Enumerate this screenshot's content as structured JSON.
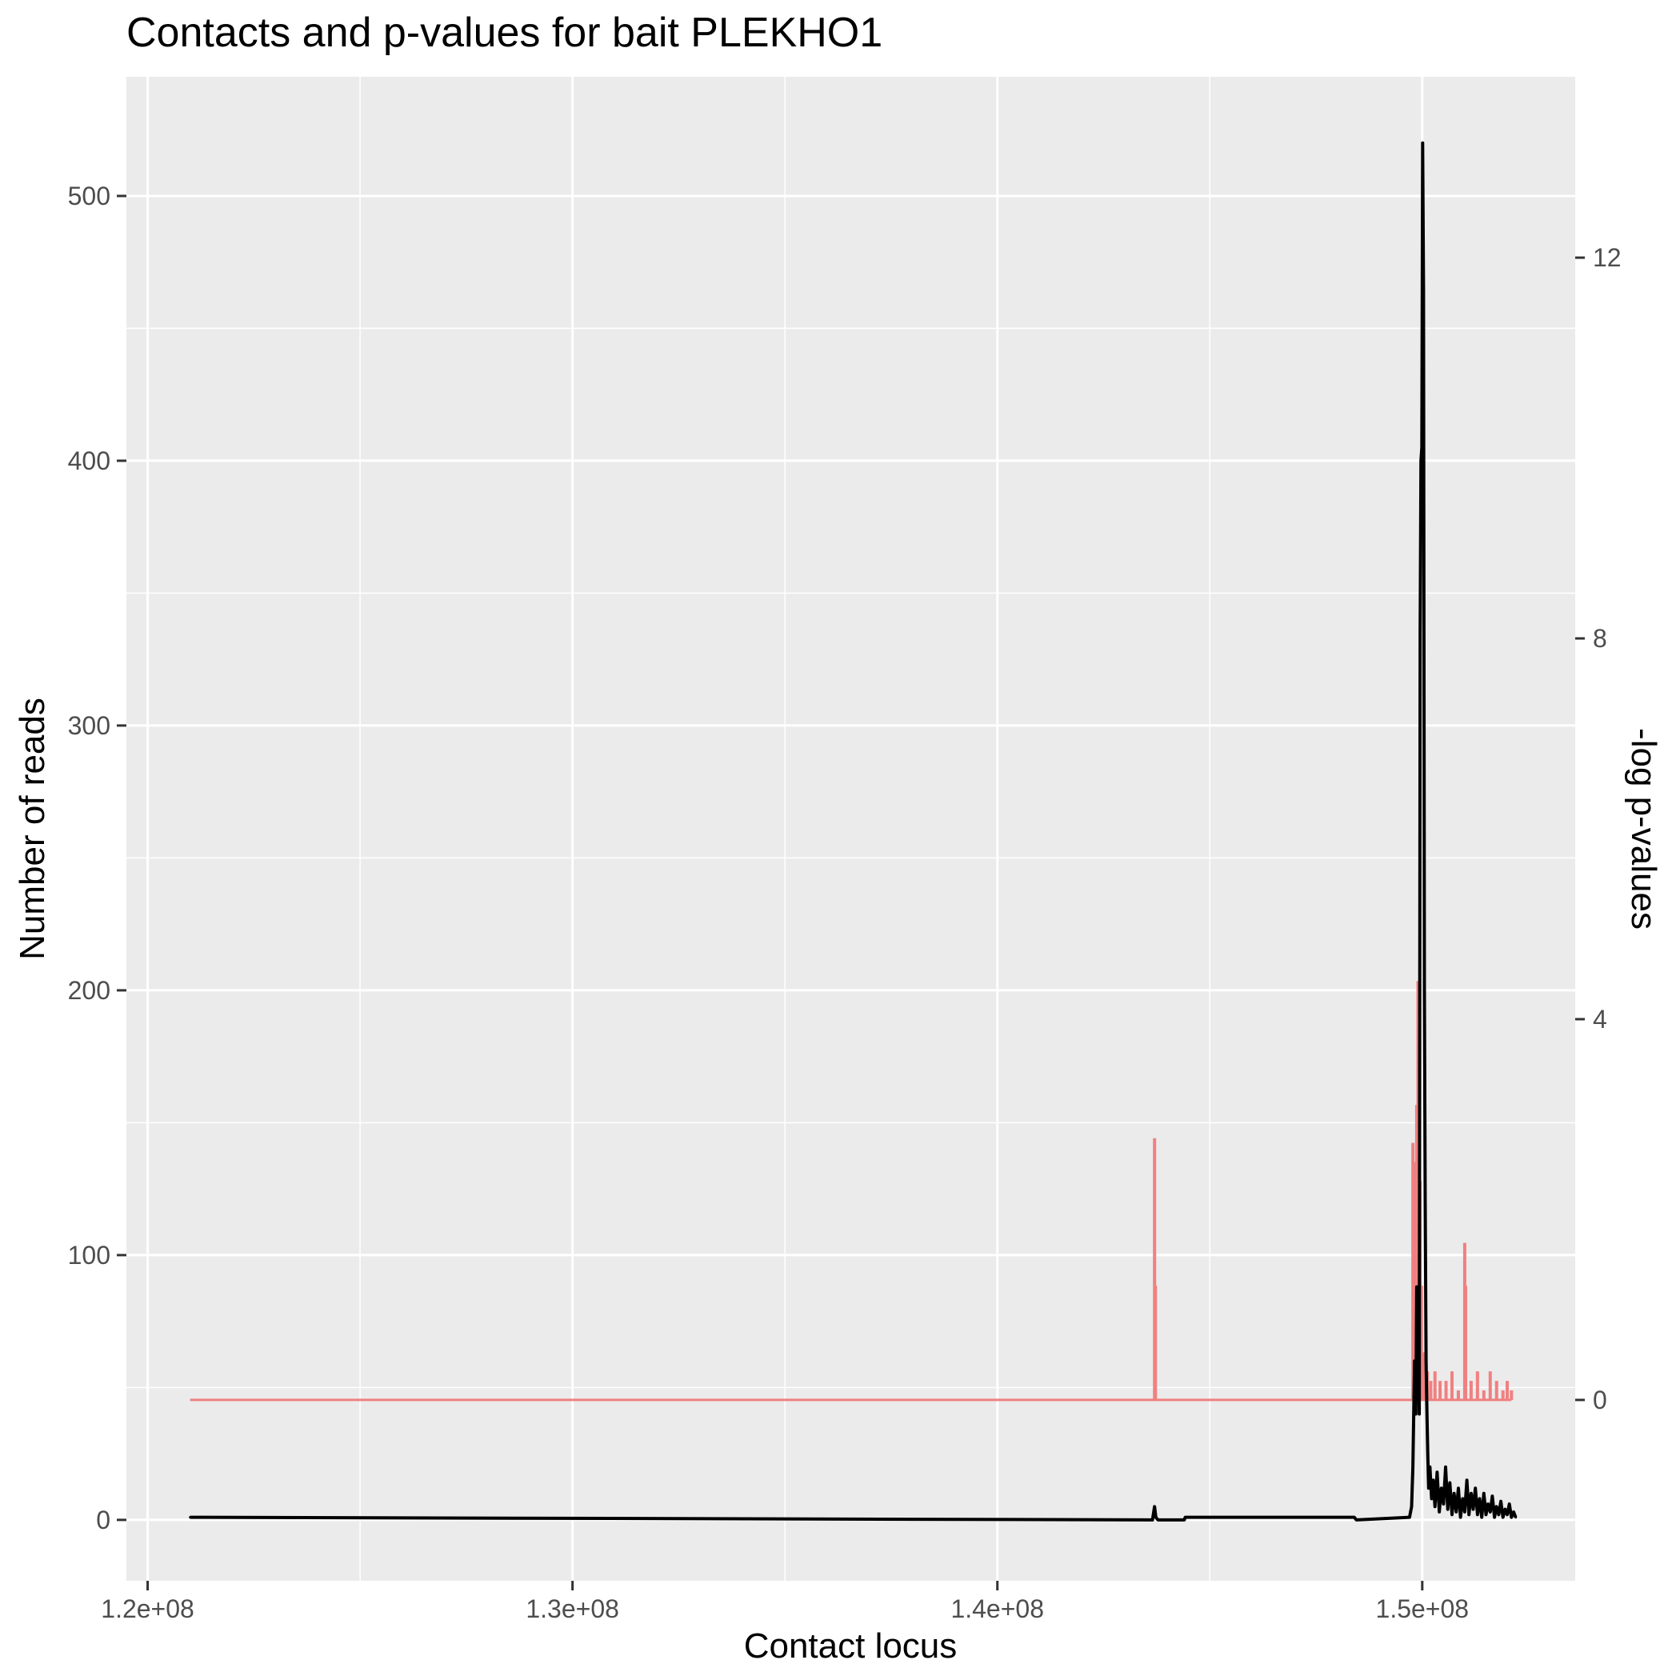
{
  "chart_data": {
    "type": "line",
    "title": "Contacts and p-values for bait PLEKHO1",
    "xlabel": "Contact locus",
    "ylabel": "Number of reads",
    "y2label": "-log p-values",
    "xlim": [
      119500000,
      153600000
    ],
    "ylim": [
      -23,
      545
    ],
    "y2lim": [
      -1.9,
      13.9
    ],
    "x_ticks": [
      120000000,
      130000000,
      140000000,
      150000000
    ],
    "x_tick_labels": [
      "1.2e+08",
      "1.3e+08",
      "1.4e+08",
      "1.5e+08"
    ],
    "y_ticks": [
      0,
      100,
      200,
      300,
      400,
      500
    ],
    "y_tick_labels": [
      "0",
      "100",
      "200",
      "300",
      "400",
      "500"
    ],
    "y2_ticks": [
      0,
      4,
      8,
      12
    ],
    "y2_tick_labels": [
      "0",
      "4",
      "8",
      "12"
    ],
    "grid": true,
    "background": "#EBEBEB",
    "series": [
      {
        "axis": "right",
        "color": "#F08080",
        "style": "spikes",
        "x": [
          121000000,
          143700000,
          143720000,
          149780000,
          149830000,
          149870000,
          149900000,
          149920000,
          149950000,
          149980000,
          150010000,
          150040000,
          150080000,
          150120000,
          150200000,
          150300000,
          150420000,
          150560000,
          150700000,
          150850000,
          151000000,
          151020000,
          151150000,
          151300000,
          151450000,
          151600000,
          151750000,
          151900000,
          152000000,
          152100000
        ],
        "values": [
          0,
          2.75,
          1.2,
          2.7,
          2.5,
          3.1,
          4.4,
          4.1,
          2.3,
          1.2,
          0.5,
          0.5,
          0.4,
          0.3,
          0.2,
          0.3,
          0.2,
          0.2,
          0.3,
          0.1,
          1.65,
          1.2,
          0.2,
          0.3,
          0.1,
          0.3,
          0.2,
          0.1,
          0.2,
          0.1
        ]
      },
      {
        "axis": "left",
        "color": "#000000",
        "style": "line",
        "x": [
          121000000,
          143650000,
          143700000,
          143730000,
          143780000,
          144400000,
          144420000,
          148400000,
          148450000,
          149700000,
          149750000,
          149780000,
          149820000,
          149850000,
          149870000,
          149890000,
          149910000,
          149930000,
          149950000,
          149970000,
          149990000,
          150010000,
          150030000,
          150050000,
          150070000,
          150090000,
          150110000,
          150130000,
          150150000,
          150180000,
          150220000,
          150260000,
          150300000,
          150350000,
          150400000,
          150450000,
          150500000,
          150550000,
          150600000,
          150650000,
          150700000,
          150750000,
          150800000,
          150850000,
          150900000,
          150950000,
          151000000,
          151050000,
          151100000,
          151150000,
          151200000,
          151250000,
          151300000,
          151350000,
          151400000,
          151450000,
          151500000,
          151550000,
          151600000,
          151650000,
          151700000,
          151750000,
          151800000,
          151850000,
          151900000,
          151950000,
          152000000,
          152050000,
          152100000,
          152150000,
          152200000
        ],
        "values": [
          1,
          0,
          5,
          1,
          0,
          0,
          1,
          1,
          0,
          1,
          5,
          20,
          60,
          40,
          88,
          55,
          70,
          40,
          335,
          400,
          405,
          520,
          465,
          200,
          120,
          60,
          40,
          25,
          12,
          20,
          8,
          15,
          5,
          18,
          3,
          12,
          6,
          20,
          4,
          14,
          2,
          10,
          3,
          12,
          1,
          8,
          3,
          15,
          2,
          10,
          4,
          12,
          2,
          8,
          1,
          10,
          2,
          6,
          3,
          9,
          1,
          5,
          2,
          7,
          1,
          4,
          2,
          6,
          1,
          3,
          1
        ]
      }
    ]
  }
}
